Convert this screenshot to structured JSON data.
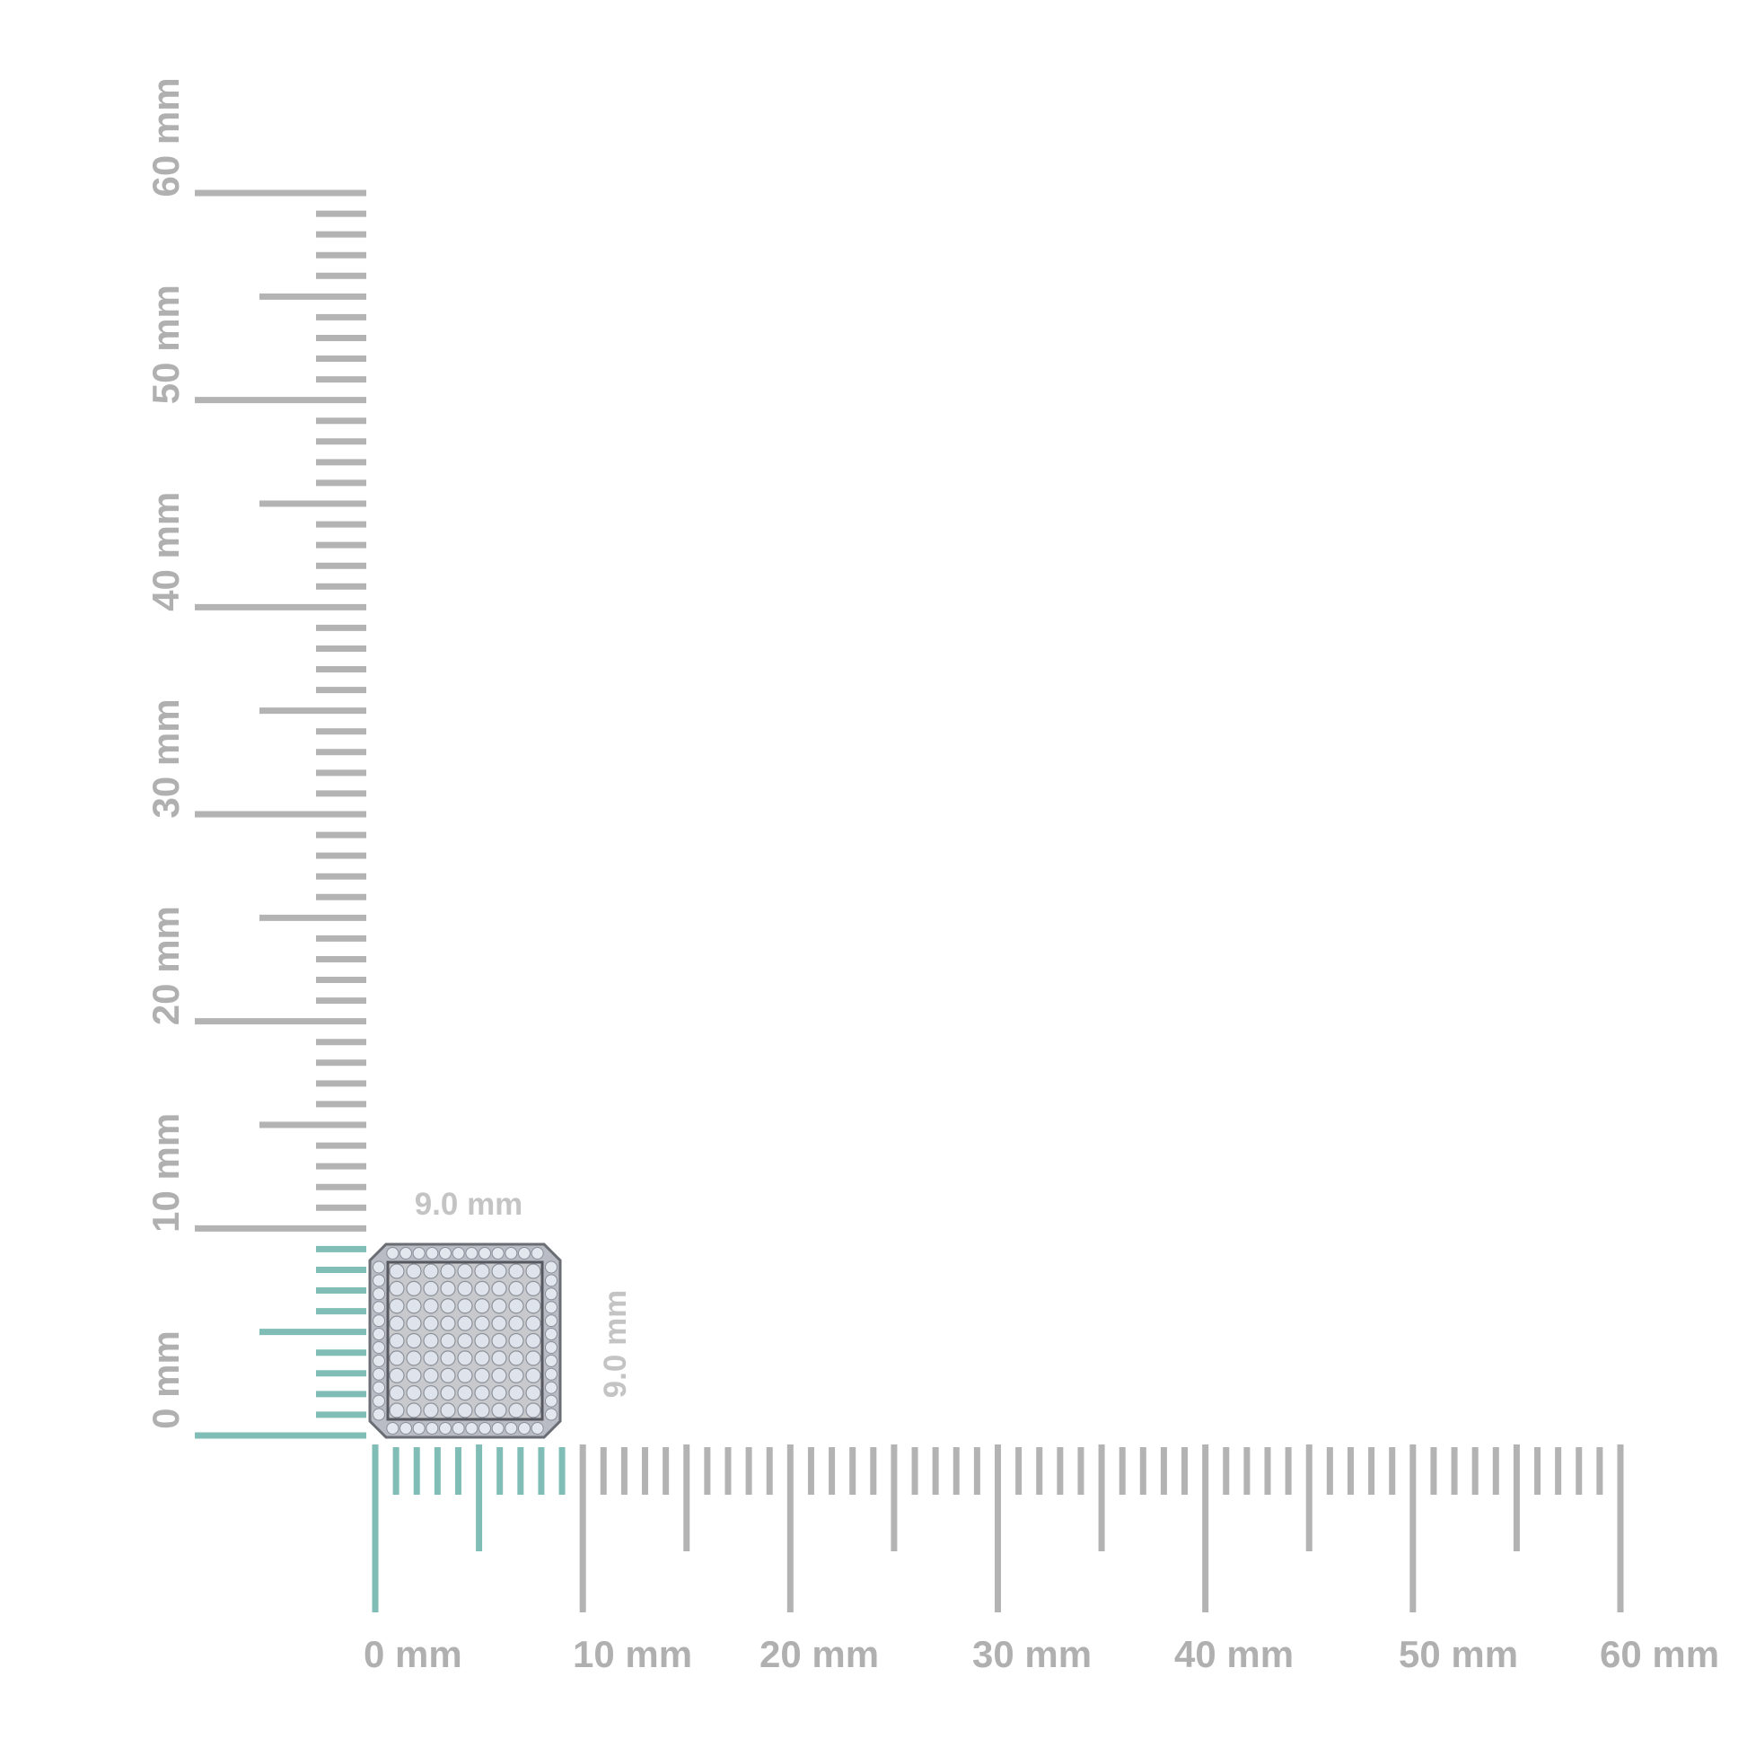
{
  "ruler": {
    "unit": "mm",
    "min": 0,
    "max": 60,
    "highlight_upto": 9,
    "colors": {
      "tick": "#b3b3b3",
      "highlight": "#7fbdb6",
      "label": "#b0b0b0"
    },
    "vertical_labels": [
      "0 mm",
      "10 mm",
      "20 mm",
      "30 mm",
      "40 mm",
      "50 mm",
      "60 mm"
    ],
    "horizontal_labels": [
      "0 mm",
      "10 mm",
      "20 mm",
      "30 mm",
      "40 mm",
      "50 mm",
      "60 mm"
    ]
  },
  "item": {
    "width_label": "9.0 mm",
    "height_label": "9.0 mm",
    "width_mm": 9.0,
    "height_mm": 9.0
  }
}
